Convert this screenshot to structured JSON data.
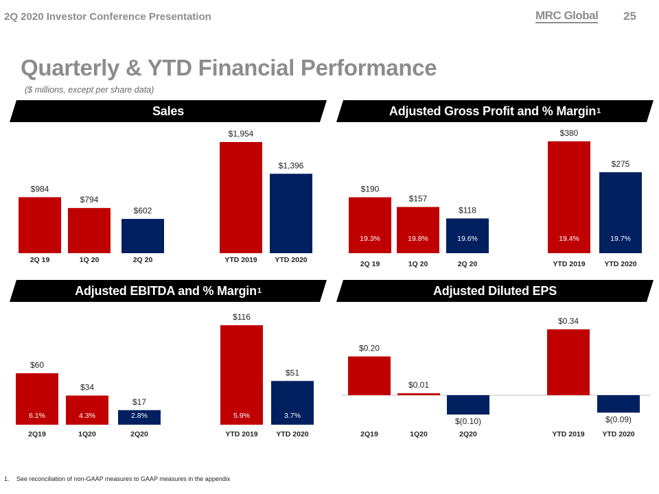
{
  "header": {
    "conference": "2Q 2020 Investor Conference Presentation",
    "logo_text": "MRC Global",
    "page_number": "25"
  },
  "title": "Quarterly & YTD Financial Performance",
  "subtitle": "($ millions, except per share data)",
  "footnote": {
    "number": "1.",
    "text": "See reconciliation of non-GAAP measures to GAAP measures in the appendix"
  },
  "colors": {
    "red": "#c00000",
    "navy": "#002060",
    "band": "#000000"
  },
  "chart_data": [
    {
      "type": "bar",
      "title": "Sales",
      "title_sup": "",
      "categories": [
        "2Q 19",
        "1Q 20",
        "2Q 20",
        "YTD 2019",
        "YTD 2020"
      ],
      "values": [
        984,
        794,
        602,
        1954,
        1396
      ],
      "labels": [
        "$984",
        "$794",
        "$602",
        "$1,954",
        "$1,396"
      ],
      "colors": [
        "red",
        "red",
        "navy",
        "red",
        "navy"
      ],
      "margins": [],
      "ylim": [
        0,
        2000
      ]
    },
    {
      "type": "bar",
      "title": "Adjusted Gross Profit and % Margin",
      "title_sup": "1",
      "categories": [
        "2Q 19",
        "1Q 20",
        "2Q 20",
        "YTD 2019",
        "YTD 2020"
      ],
      "values": [
        190,
        157,
        118,
        380,
        275
      ],
      "labels": [
        "$190",
        "$157",
        "$118",
        "$380",
        "$275"
      ],
      "colors": [
        "red",
        "red",
        "navy",
        "red",
        "navy"
      ],
      "margins": [
        "19.3%",
        "19.8%",
        "19.6%",
        "19.4%",
        "19.7%"
      ],
      "ylim": [
        0,
        400
      ]
    },
    {
      "type": "bar",
      "title": "Adjusted EBITDA and % Margin",
      "title_sup": "1",
      "categories": [
        "2Q19",
        "1Q20",
        "2Q20",
        "YTD 2019",
        "YTD 2020"
      ],
      "values": [
        60,
        34,
        17,
        116,
        51
      ],
      "labels": [
        "$60",
        "$34",
        "$17",
        "$116",
        "$51"
      ],
      "colors": [
        "red",
        "red",
        "navy",
        "red",
        "navy"
      ],
      "margins": [
        "6.1%",
        "4.3%",
        "2.8%",
        "5.9%",
        "3.7%"
      ],
      "ylim": [
        0,
        120
      ]
    },
    {
      "type": "bar",
      "title": "Adjusted Diluted EPS",
      "title_sup": "",
      "categories": [
        "2Q19",
        "1Q20",
        "2Q20",
        "YTD 2019",
        "YTD 2020"
      ],
      "values": [
        0.2,
        0.01,
        -0.1,
        0.34,
        -0.09
      ],
      "labels": [
        "$0.20",
        "$0.01",
        "$(0.10)",
        "$0.34",
        "$(0.09)"
      ],
      "colors": [
        "red",
        "red",
        "navy",
        "red",
        "navy"
      ],
      "margins": [],
      "ylim": [
        -0.15,
        0.4
      ]
    }
  ]
}
